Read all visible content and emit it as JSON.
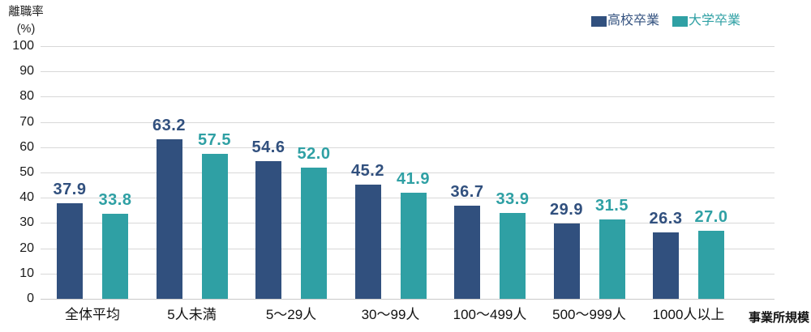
{
  "chart_data": {
    "type": "bar",
    "title": "",
    "ylabel": "離職率",
    "ylabel_unit": "(%)",
    "xlabel": "事業所規模",
    "ylim": [
      0,
      100
    ],
    "yticks": [
      0,
      10,
      20,
      30,
      40,
      50,
      60,
      70,
      80,
      90,
      100
    ],
    "grid": true,
    "legend_position": "top-right",
    "categories": [
      "全体平均",
      "5人未満",
      "5〜29人",
      "30〜99人",
      "100〜499人",
      "500〜999人",
      "1000人以上"
    ],
    "series": [
      {
        "name": "高校卒業",
        "color": "#31507E",
        "values": [
          37.9,
          63.2,
          54.6,
          45.2,
          36.7,
          29.9,
          26.3
        ],
        "labels": [
          "37.9",
          "63.2",
          "54.6",
          "45.2",
          "36.7",
          "29.9",
          "26.3"
        ]
      },
      {
        "name": "大学卒業",
        "color": "#2FA0A4",
        "values": [
          33.8,
          57.5,
          52.0,
          41.9,
          33.9,
          31.5,
          27.0
        ],
        "labels": [
          "33.8",
          "57.5",
          "52.0",
          "41.9",
          "33.9",
          "31.5",
          "27.0"
        ]
      }
    ]
  },
  "colors": {
    "grid": "#D8D8D8",
    "axis_line": "#C9C9C9",
    "background": "#FFFFFF"
  }
}
